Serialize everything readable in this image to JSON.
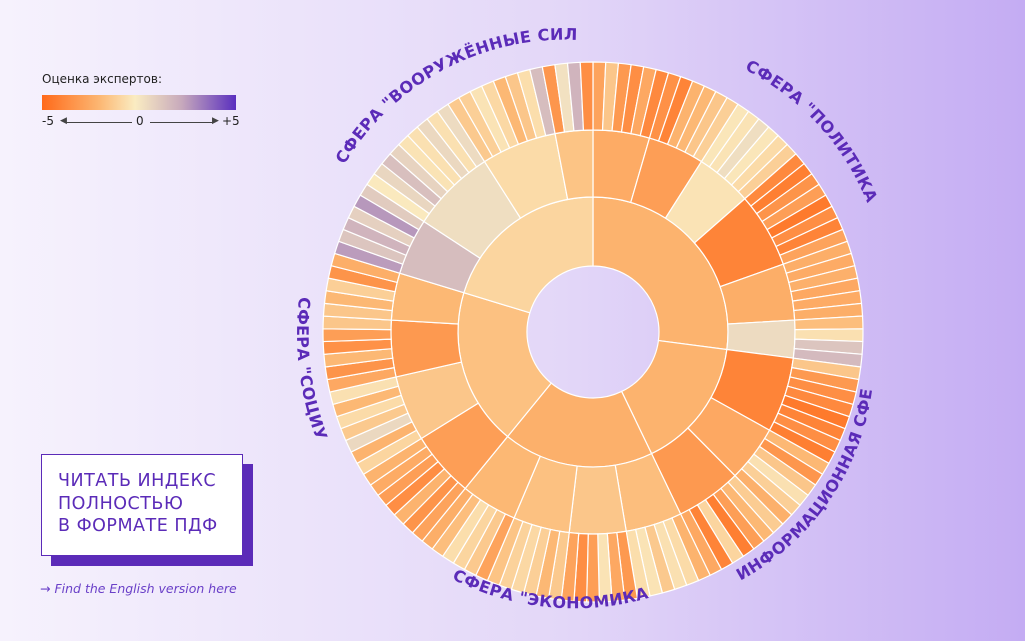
{
  "legend": {
    "title": "Оценка экспертов:",
    "min_label": "-5",
    "mid_label": "0",
    "max_label": "+5",
    "colors": [
      "#ff6a1a",
      "#fcb874",
      "#faecc2",
      "#c7a9bc",
      "#5a2fbf"
    ]
  },
  "pdf_button": {
    "line1": "ЧИТАТЬ ИНДЕКС",
    "line2": "ПОЛНОСТЬЮ",
    "line3": "В ФОРМАТЕ ПДФ"
  },
  "english_link": "→ Find the English version here",
  "chart_data": {
    "type": "sunburst",
    "title": "",
    "color_scale": {
      "min": -5,
      "max": 5
    },
    "segments": [
      {
        "name": "СФЕРА \"ПОЛИТИКА\"",
        "value": -2.2,
        "subcategories": [
          {
            "value": -2.5,
            "items": [
              -2.8,
              -1.5,
              -3.2,
              -3.6,
              -2.6,
              -3.8
            ]
          },
          {
            "value": -3.0,
            "items": [
              -3.5,
              -4.0,
              -2.2,
              -2.0,
              -1.5,
              -1.2
            ]
          },
          {
            "value": -0.5,
            "items": [
              -0.4,
              -0.5,
              0.3,
              -0.4,
              -0.8,
              -1.2
            ]
          },
          {
            "value": -4.0,
            "items": [
              -3.8,
              -4.2,
              -3.4,
              -3.0,
              -4.4,
              -3.6,
              -4.0,
              -2.8
            ]
          },
          {
            "value": -2.4,
            "items": [
              -2.4,
              -2.5,
              -2.3,
              -2.6,
              -2.5,
              -2.4
            ]
          },
          {
            "value": 0.4,
            "items": [
              -1.8,
              -0.6,
              1.2,
              1.6
            ]
          }
        ]
      },
      {
        "name": "ИНФОРМАЦИОННАЯ СФЕРА",
        "value": -2.2,
        "subcategories": [
          {
            "value": -4.0,
            "items": [
              -1.5,
              -3.2,
              -3.6,
              -3.8,
              -4.4,
              -4.0,
              -3.6,
              -4.2
            ]
          },
          {
            "value": -2.6,
            "items": [
              -2.0,
              -3.3,
              -1.5,
              -0.6,
              -1.2,
              -2.3
            ]
          },
          {
            "value": -3.2,
            "items": [
              -1.3,
              -2.0,
              -3.0,
              -4.2,
              -1.0,
              -4.0,
              -2.6
            ]
          }
        ]
      },
      {
        "name": "СФЕРА \"ЭКОНОМИКА\"",
        "value": -2.3,
        "subcategories": [
          {
            "value": -1.8,
            "items": [
              -2.2,
              -0.8,
              -0.6,
              -1.4,
              -0.5,
              -0.7
            ]
          },
          {
            "value": -1.5,
            "items": [
              -3.2,
              -2.6,
              -0.5,
              -3.0,
              -3.6,
              -2.8
            ]
          },
          {
            "value": -1.7,
            "items": [
              -1.4,
              -2.0,
              -1.2,
              -0.9,
              -1.1,
              -1.6
            ]
          },
          {
            "value": -2.0,
            "items": [
              -2.8,
              -1.4,
              -1.0,
              -0.7,
              -1.8,
              -2.4
            ]
          }
        ]
      },
      {
        "name": "СФЕРА \"СОЦИУМ\"",
        "value": -1.7,
        "subcategories": [
          {
            "value": -3.0,
            "items": [
              -2.8,
              -3.4,
              -2.2,
              -3.6,
              -3.0,
              -2.5,
              -2.2
            ]
          },
          {
            "value": -1.5,
            "items": [
              -1.0,
              -2.2,
              0.5,
              -1.4,
              -0.8,
              -2.0,
              -0.6
            ]
          },
          {
            "value": -3.2,
            "items": [
              -2.6,
              -3.4,
              -2.0,
              -3.5,
              -3.0,
              -1.5
            ]
          },
          {
            "value": -2.0,
            "items": [
              -1.5,
              -2.0,
              -1.2,
              -3.4,
              -2.4
            ]
          }
        ]
      },
      {
        "name": "СФЕРА \"ВООРУЖЁННЫЕ СИЛЫ\"",
        "value": -1.0,
        "subcategories": [
          {
            "value": 1.5,
            "items": [
              2.5,
              1.2,
              1.8,
              0.8,
              2.6,
              1.0
            ]
          },
          {
            "value": 0.3,
            "items": [
              -0.3,
              0.6,
              1.4,
              0.7,
              -0.5,
              -0.6,
              0.5,
              -0.6,
              0.4
            ]
          },
          {
            "value": -0.8,
            "items": [
              -1.4,
              -1.2,
              -0.5,
              -0.9,
              -2.0,
              -1.5,
              -0.7,
              1.5
            ]
          },
          {
            "value": -1.6,
            "items": [
              -3.3,
              0.2,
              1.8,
              -3.6
            ]
          }
        ]
      }
    ]
  }
}
